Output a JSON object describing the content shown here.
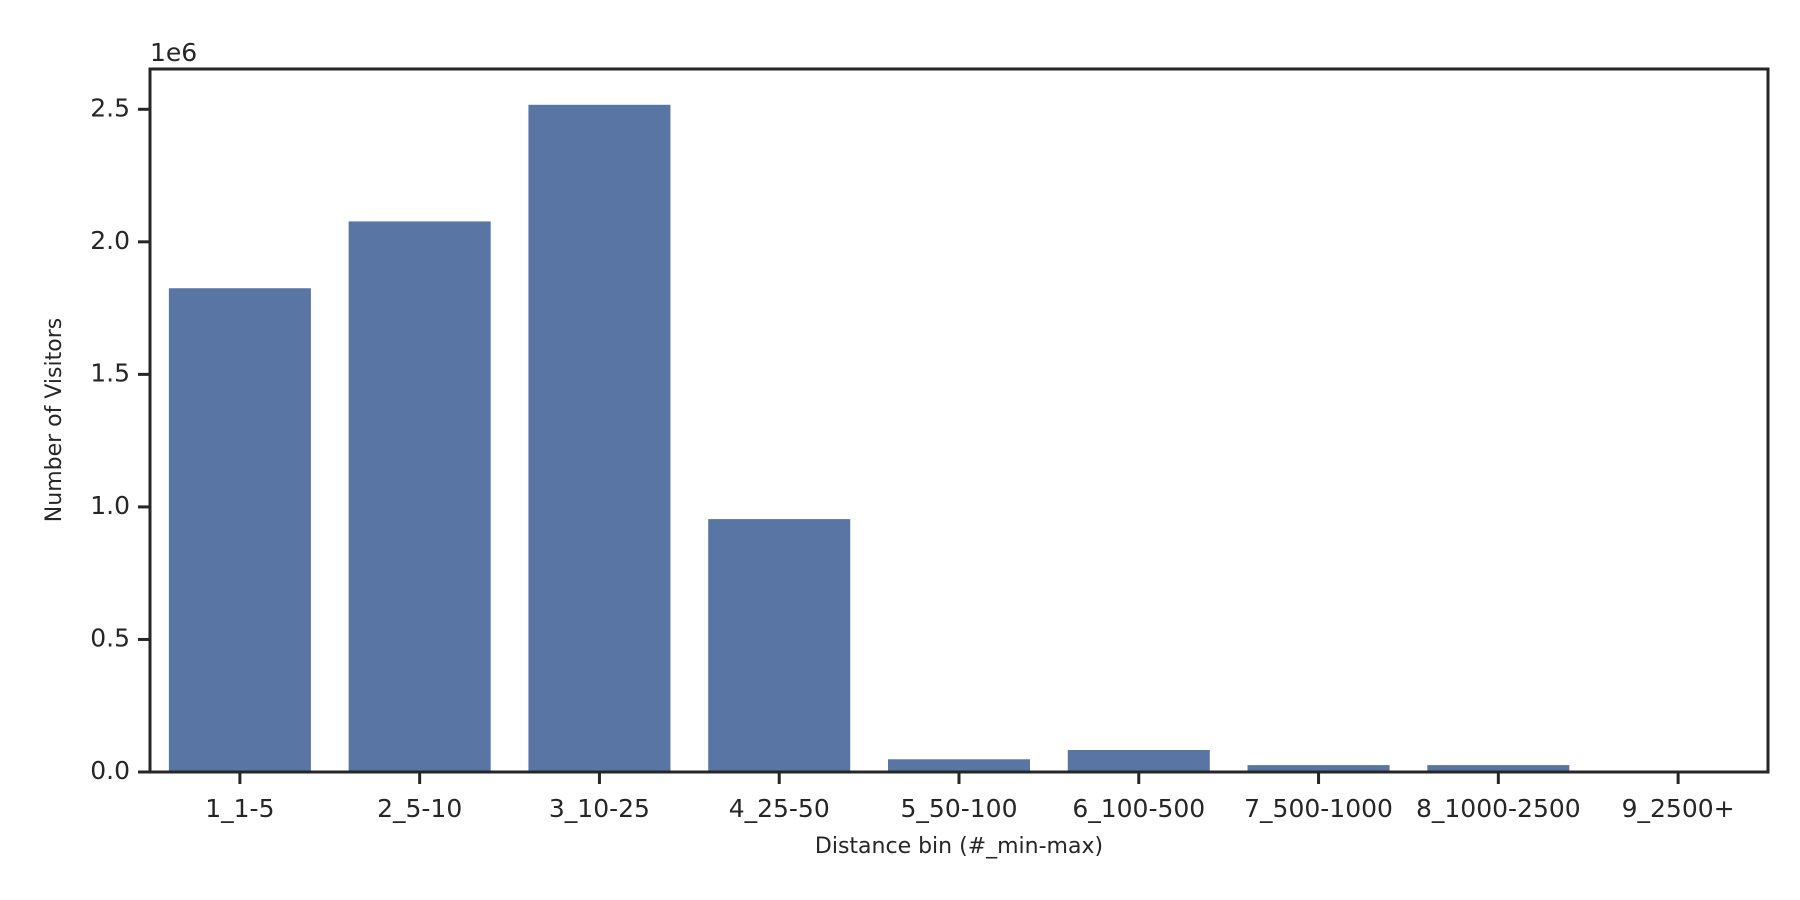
{
  "chart_data": {
    "type": "bar",
    "x_label": "Distance bin (#_min-max)",
    "y_label": "Number of Visitors",
    "y_offset_label": "1e6",
    "categories": [
      "1_1-5",
      "2_5-10",
      "3_10-25",
      "4_25-50",
      "5_50-100",
      "6_100-500",
      "7_500-1000",
      "8_1000-2500",
      "9_2500+"
    ],
    "values": [
      1825000,
      2077000,
      2517000,
      954000,
      48000,
      83000,
      26000,
      26000,
      0
    ],
    "color": "#5975a4",
    "ylim": [
      0,
      2652000
    ],
    "yticks": [
      {
        "value": 0,
        "label": "0.0"
      },
      {
        "value": 500000,
        "label": "0.5"
      },
      {
        "value": 1000000,
        "label": "1.0"
      },
      {
        "value": 1500000,
        "label": "1.5"
      },
      {
        "value": 2000000,
        "label": "2.0"
      },
      {
        "value": 2500000,
        "label": "2.5"
      }
    ],
    "grid": false
  }
}
